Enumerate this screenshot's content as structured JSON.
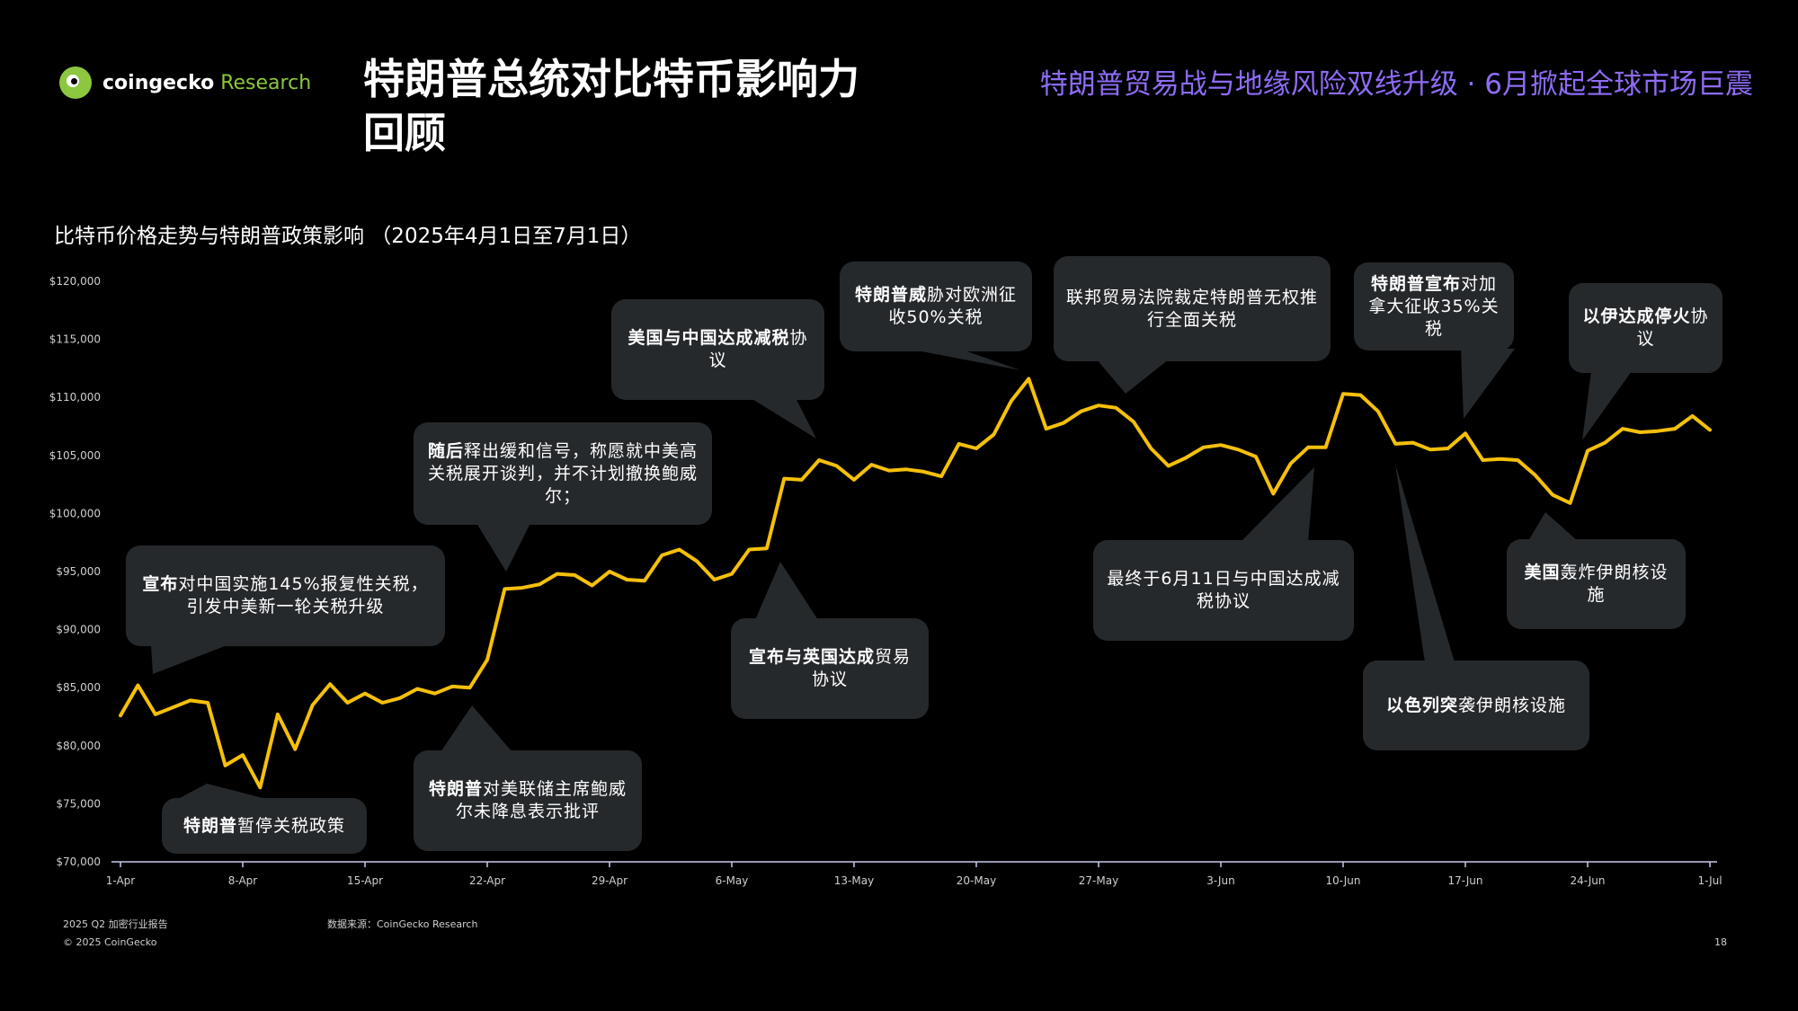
{
  "brand": {
    "name_main": "coingecko",
    "name_accent": " Research"
  },
  "title": "特朗普总统对比特币影响力回顾",
  "subtitle": "特朗普贸易战与地缘风险双线升级 · 6月掀起全球市场巨震",
  "chart_title": "比特币价格走势与特朗普政策影响 （2025年4月1日至7月1日）",
  "footer": {
    "report": "2025 Q2 加密行业报告",
    "source": "数据来源：CoinGecko Research",
    "copyright": "© 2025 CoinGecko",
    "page": "18"
  },
  "colors": {
    "line": "#f5c00a",
    "axis": "#c9c9ef",
    "callout_bg": "#26292c",
    "subtitle": "#8e6cf6",
    "brand_green": "#8dc63f"
  },
  "chart_data": {
    "type": "line",
    "ylim": [
      70000,
      120000
    ],
    "yticks": [
      70000,
      75000,
      80000,
      85000,
      90000,
      95000,
      100000,
      105000,
      110000,
      115000,
      120000
    ],
    "ytick_labels": [
      "$70,000",
      "$75,000",
      "$80,000",
      "$85,000",
      "$90,000",
      "$95,000",
      "$100,000",
      "$105,000",
      "$110,000",
      "$115,000",
      "$120,000"
    ],
    "x_start": "2025-04-01",
    "x_end": "2025-07-01",
    "xticks": [
      "2025-04-01",
      "2025-04-08",
      "2025-04-15",
      "2025-04-22",
      "2025-04-29",
      "2025-05-06",
      "2025-05-13",
      "2025-05-20",
      "2025-05-27",
      "2025-06-03",
      "2025-06-10",
      "2025-06-17",
      "2025-06-24",
      "2025-07-01"
    ],
    "xtick_labels": [
      "1-Apr",
      "8-Apr",
      "15-Apr",
      "22-Apr",
      "29-Apr",
      "6-May",
      "13-May",
      "20-May",
      "27-May",
      "3-Jun",
      "10-Jun",
      "17-Jun",
      "24-Jun",
      "1-Jul"
    ],
    "series": [
      {
        "dates": [
          "2025-04-01",
          "2025-04-02",
          "2025-04-03",
          "2025-04-04",
          "2025-04-05",
          "2025-04-06",
          "2025-04-07",
          "2025-04-08",
          "2025-04-09",
          "2025-04-10",
          "2025-04-11",
          "2025-04-12",
          "2025-04-13",
          "2025-04-14",
          "2025-04-15",
          "2025-04-16",
          "2025-04-17",
          "2025-04-18",
          "2025-04-19",
          "2025-04-20",
          "2025-04-21",
          "2025-04-22",
          "2025-04-23",
          "2025-04-24",
          "2025-04-25",
          "2025-04-26",
          "2025-04-27",
          "2025-04-28",
          "2025-04-29",
          "2025-04-30",
          "2025-05-01",
          "2025-05-02",
          "2025-05-03",
          "2025-05-04",
          "2025-05-05",
          "2025-05-06",
          "2025-05-07",
          "2025-05-08",
          "2025-05-09",
          "2025-05-10",
          "2025-05-11",
          "2025-05-12",
          "2025-05-13",
          "2025-05-14",
          "2025-05-15",
          "2025-05-16",
          "2025-05-17",
          "2025-05-18",
          "2025-05-19",
          "2025-05-20",
          "2025-05-21",
          "2025-05-22",
          "2025-05-23",
          "2025-05-24",
          "2025-05-25",
          "2025-05-26",
          "2025-05-27",
          "2025-05-28",
          "2025-05-29",
          "2025-05-30",
          "2025-05-31",
          "2025-06-01",
          "2025-06-02",
          "2025-06-03",
          "2025-06-04",
          "2025-06-05",
          "2025-06-06",
          "2025-06-07",
          "2025-06-08",
          "2025-06-09",
          "2025-06-10",
          "2025-06-11",
          "2025-06-12",
          "2025-06-13",
          "2025-06-14",
          "2025-06-15",
          "2025-06-16",
          "2025-06-17",
          "2025-06-18",
          "2025-06-19",
          "2025-06-20",
          "2025-06-21",
          "2025-06-22",
          "2025-06-23",
          "2025-06-24",
          "2025-06-25",
          "2025-06-26",
          "2025-06-27",
          "2025-06-28",
          "2025-06-29",
          "2025-06-30",
          "2025-07-01"
        ],
        "values": [
          82600,
          85200,
          82700,
          83300,
          83900,
          83700,
          78300,
          79200,
          76400,
          82700,
          79700,
          83500,
          85300,
          83700,
          84500,
          83700,
          84100,
          84900,
          84500,
          85100,
          85000,
          87400,
          93500,
          93600,
          93900,
          94800,
          94700,
          93800,
          95000,
          94300,
          94200,
          96400,
          96900,
          95900,
          94300,
          94800,
          96900,
          97000,
          103000,
          102900,
          104600,
          104100,
          102900,
          104200,
          103700,
          103800,
          103600,
          103200,
          106000,
          105600,
          106800,
          109700,
          111600,
          107300,
          107800,
          108800,
          109300,
          109100,
          107900,
          105600,
          104100,
          104800,
          105700,
          105900,
          105500,
          104900,
          101700,
          104300,
          105700,
          105700,
          110300,
          110200,
          108800,
          106000,
          106100,
          105500,
          105600,
          106900,
          104600,
          104700,
          104600,
          103300,
          101600,
          100900,
          105400,
          106100,
          107300,
          107000,
          107100,
          107300,
          108400,
          107200
        ]
      }
    ],
    "annotations": [
      {
        "id": "a1",
        "text_bold": "宣布",
        "text_rest": "对中国实施145%报复性关税，引发中美新一轮关税升级"
      },
      {
        "id": "a2",
        "text_bold": "特朗普",
        "text_rest": "暂停关税政策"
      },
      {
        "id": "a3",
        "text_bold": "随后",
        "text_rest": "释出缓和信号，称愿就中美高关税展开谈判，并不计划撤换鲍威尔；"
      },
      {
        "id": "a4",
        "text_bold": "特朗普",
        "text_rest": "对美联储主席鲍威尔未降息表示批评"
      },
      {
        "id": "a5",
        "text_bold": "美国与中国达成减税",
        "text_rest": "协议"
      },
      {
        "id": "a6",
        "text_bold": "宣布与英国达成",
        "text_rest": "贸易协议"
      },
      {
        "id": "a7",
        "text_bold": "特朗普威",
        "text_rest": "胁对欧洲征收50%关税"
      },
      {
        "id": "a8",
        "text_bold": "",
        "text_rest": "联邦贸易法院裁定特朗普无权推行全面关税"
      },
      {
        "id": "a9",
        "text_bold": "",
        "text_rest": "最终于6月11日与中国达成减税协议"
      },
      {
        "id": "a10",
        "text_bold": "特朗普宣布",
        "text_rest": "对加拿大征收35%关税"
      },
      {
        "id": "a11",
        "text_bold": "以色列突",
        "text_rest": "袭伊朗核设施"
      },
      {
        "id": "a12",
        "text_bold": "以伊达成停火",
        "text_rest": "协议"
      },
      {
        "id": "a13",
        "text_bold": "美国",
        "text_rest": "轰炸伊朗核设施"
      }
    ]
  }
}
